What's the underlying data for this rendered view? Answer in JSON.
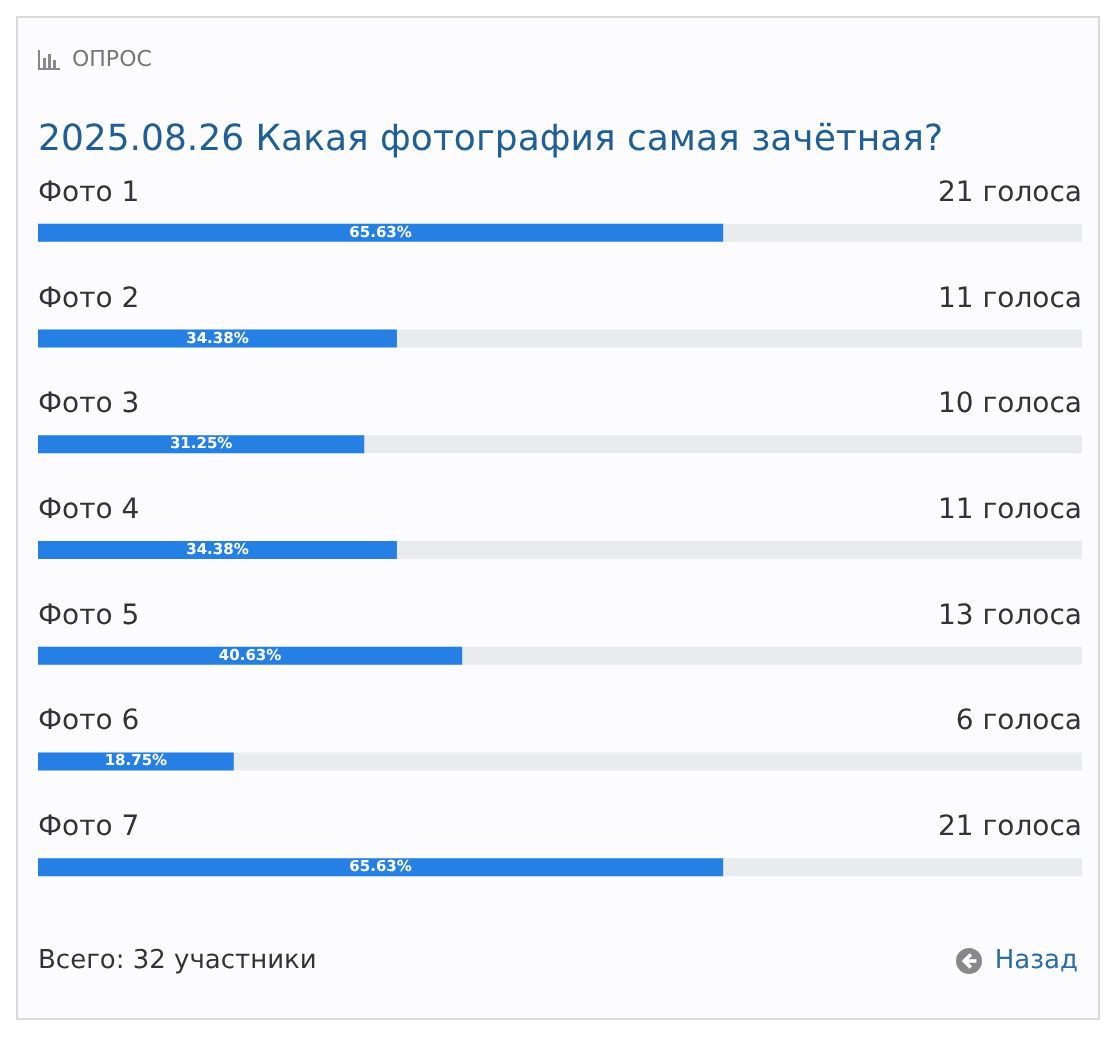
{
  "chart_data": {
    "type": "bar",
    "orientation": "horizontal",
    "subtitle": "ОПРОС",
    "title": "2025.08.26 Какая фотография самая зачётная?",
    "categories": [
      "Фото 1",
      "Фото 2",
      "Фото 3",
      "Фото 4",
      "Фото 5",
      "Фото 6",
      "Фото 7"
    ],
    "values": [
      65.63,
      34.38,
      31.25,
      34.38,
      40.63,
      18.75,
      65.63
    ],
    "value_labels": [
      "65.63%",
      "34.38%",
      "31.25%",
      "34.38%",
      "40.63%",
      "18.75%",
      "65.63%"
    ],
    "color": "#2680e3",
    "xlim": [
      0,
      100
    ],
    "tick_labels": false,
    "annotations": [
      "21 голоса",
      "11 голоса",
      "10 голоса",
      "11 голоса",
      "13 голоса",
      "6 голоса",
      "21 голоса",
      "Всего: 32 участники",
      "Назад"
    ]
  }
}
